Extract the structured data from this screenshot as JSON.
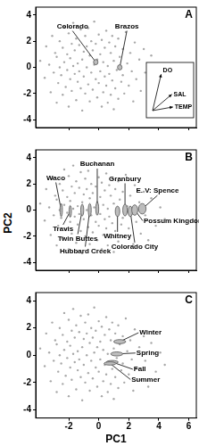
{
  "chart_data": {
    "type": "scatter",
    "x_label": "PC1",
    "y_label": "PC2",
    "xlim": [
      -4.2,
      6.5
    ],
    "ylim": [
      -4.6,
      4.6
    ],
    "xticks": [
      -2,
      0,
      2,
      4,
      6
    ],
    "yticks": [
      -4,
      -2,
      0,
      2,
      4
    ],
    "grid": false,
    "color": "#a8a8a8",
    "ellipse_color": "#bdbdbd",
    "points": {
      "x": [
        -3.9,
        -3.6,
        -3.5,
        -3.3,
        -3.2,
        -3.1,
        -3.0,
        -2.9,
        -2.8,
        -2.8,
        -2.7,
        -2.6,
        -2.6,
        -2.5,
        -2.4,
        -2.4,
        -2.3,
        -2.3,
        -2.2,
        -2.1,
        -2.1,
        -2.0,
        -2.0,
        -1.9,
        -1.9,
        -1.8,
        -1.8,
        -1.7,
        -1.7,
        -1.6,
        -1.6,
        -1.5,
        -1.5,
        -1.4,
        -1.4,
        -1.3,
        -1.3,
        -1.2,
        -1.2,
        -1.1,
        -1.1,
        -1.0,
        -1.0,
        -0.9,
        -0.9,
        -0.8,
        -0.8,
        -0.7,
        -0.7,
        -0.6,
        -0.6,
        -0.5,
        -0.5,
        -0.4,
        -0.4,
        -0.3,
        -0.3,
        -0.2,
        -0.2,
        -0.1,
        -0.1,
        0.0,
        0.0,
        0.1,
        0.1,
        0.2,
        0.2,
        0.3,
        0.3,
        0.4,
        0.4,
        0.5,
        0.5,
        0.6,
        0.6,
        0.7,
        0.7,
        0.8,
        0.8,
        0.9,
        0.9,
        1.0,
        1.0,
        1.1,
        1.1,
        1.2,
        1.3,
        1.3,
        1.4,
        1.5,
        1.6,
        1.6,
        1.7,
        1.8,
        1.9,
        2.0,
        2.1,
        2.2,
        2.3,
        2.4,
        2.5,
        2.7,
        2.8,
        3.0,
        3.1,
        3.3,
        3.5,
        3.8,
        4.1,
        4.4
      ],
      "y": [
        0.5,
        -0.8,
        1.6,
        0.2,
        -1.9,
        2.4,
        -0.4,
        1.1,
        -2.7,
        0.8,
        -1.2,
        2.0,
        0.0,
        -0.6,
        1.5,
        -2.1,
        3.1,
        0.4,
        -1.5,
        1.0,
        -0.2,
        2.6,
        -3.0,
        0.7,
        -0.9,
        1.8,
        -1.8,
        0.1,
        3.4,
        -0.5,
        1.3,
        -2.5,
        2.2,
        0.3,
        -1.1,
        1.7,
        -0.3,
        2.9,
        -1.6,
        0.6,
        -3.3,
        1.2,
        -0.7,
        2.4,
        -2.0,
        0.0,
        1.6,
        -1.3,
        3.0,
        0.9,
        -2.6,
        -0.4,
        2.0,
        1.3,
        -1.7,
        0.2,
        3.5,
        -0.9,
        1.8,
        -2.3,
        0.6,
        2.5,
        -1.2,
        1.0,
        -0.3,
        -3.0,
        2.1,
        0.4,
        -1.9,
        1.5,
        -0.7,
        2.8,
        -1.4,
        0.1,
        -2.7,
        1.9,
        -0.5,
        1.1,
        -2.1,
        2.4,
        -1.0,
        0.5,
        -3.2,
        1.6,
        -1.6,
        -0.2,
        2.2,
        -2.4,
        0.8,
        -1.1,
        1.4,
        -0.6,
        -2.0,
        2.7,
        0.3,
        -1.4,
        1.1,
        -0.3,
        -2.6,
        1.9,
        -0.9,
        0.6,
        -1.8,
        1.4,
        -0.4,
        -2.3,
        0.9,
        -1.2,
        0.2,
        -0.7
      ]
    },
    "panels": [
      {
        "label": "A",
        "ellipses": [
          {
            "label": "Colorado",
            "x": -0.2,
            "y": 0.4,
            "rx": 0.15,
            "ry": 0.2
          },
          {
            "label": "Brazos",
            "x": 1.4,
            "y": 0.0,
            "rx": 0.15,
            "ry": 0.2
          }
        ],
        "loadings": [
          {
            "label": "DO",
            "x": 0.4,
            "y": 1.0
          },
          {
            "label": "SAL",
            "x": 0.9,
            "y": 0.45
          },
          {
            "label": "TEMP",
            "x": 0.95,
            "y": 0.1
          }
        ]
      },
      {
        "label": "B",
        "ellipses": [
          {
            "label": "Waco",
            "x": -2.5,
            "y": 0.0,
            "rx": 0.08,
            "ry": 0.5
          },
          {
            "label": "Travis",
            "x": -1.9,
            "y": -0.1,
            "rx": 0.08,
            "ry": 0.45
          },
          {
            "label": "Twin Buttes",
            "x": -1.1,
            "y": 0.0,
            "rx": 0.1,
            "ry": 0.45
          },
          {
            "label": "Hubbard Creek",
            "x": -0.6,
            "y": 0.0,
            "rx": 0.1,
            "ry": 0.5
          },
          {
            "label": "Buchanan",
            "x": -0.1,
            "y": 0.1,
            "rx": 0.1,
            "ry": 0.5
          },
          {
            "label": "Whitney",
            "x": 1.25,
            "y": -0.1,
            "rx": 0.15,
            "ry": 0.4
          },
          {
            "label": "Granbury",
            "x": 1.75,
            "y": 0.0,
            "rx": 0.15,
            "ry": 0.45
          },
          {
            "label": "Colorado City",
            "x": 2.1,
            "y": -0.1,
            "rx": 0.15,
            "ry": 0.4
          },
          {
            "label": "Possum Kingdom",
            "x": 2.4,
            "y": 0.0,
            "rx": 0.2,
            "ry": 0.4
          },
          {
            "label": "E. V: Spence",
            "x": 2.9,
            "y": 0.1,
            "rx": 0.25,
            "ry": 0.4
          }
        ]
      },
      {
        "label": "C",
        "ellipses": [
          {
            "label": "Winter",
            "x": 1.4,
            "y": 1.0,
            "rx": 0.4,
            "ry": 0.15
          },
          {
            "label": "Spring",
            "x": 1.2,
            "y": 0.1,
            "rx": 0.4,
            "ry": 0.15
          },
          {
            "label": "Fall",
            "x": 0.9,
            "y": -0.5,
            "rx": 0.4,
            "ry": 0.12
          },
          {
            "label": "Summer",
            "x": 0.75,
            "y": -0.6,
            "rx": 0.4,
            "ry": 0.12
          }
        ]
      }
    ]
  }
}
